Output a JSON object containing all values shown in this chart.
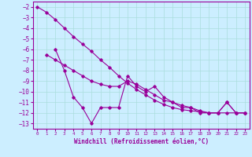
{
  "xlabel": "Windchill (Refroidissement éolien,°C)",
  "line_color": "#990099",
  "background_color": "#cceeff",
  "grid_color": "#aadddd",
  "xlim": [
    -0.5,
    23.5
  ],
  "ylim": [
    -13.5,
    -1.5
  ],
  "yticks": [
    -13,
    -12,
    -11,
    -10,
    -9,
    -8,
    -7,
    -6,
    -5,
    -4,
    -3,
    -2
  ],
  "xticks": [
    0,
    1,
    2,
    3,
    4,
    5,
    6,
    7,
    8,
    9,
    10,
    11,
    12,
    13,
    14,
    15,
    16,
    17,
    18,
    19,
    20,
    21,
    22,
    23
  ],
  "line1": {
    "x": [
      0,
      1,
      2,
      3,
      4,
      5,
      6,
      7,
      8,
      9,
      10,
      11,
      12,
      13,
      14,
      15,
      16,
      17,
      18,
      19,
      20,
      21,
      22,
      23
    ],
    "y": [
      -2.0,
      -2.5,
      -3.2,
      -4.0,
      -4.8,
      -5.5,
      -6.2,
      -7.0,
      -7.7,
      -8.5,
      -9.2,
      -9.8,
      -10.3,
      -10.8,
      -11.2,
      -11.5,
      -11.7,
      -11.8,
      -11.9,
      -12.0,
      -12.0,
      -12.0,
      -12.0,
      -12.0
    ]
  },
  "line2": {
    "x": [
      1,
      2,
      3,
      4,
      5,
      6,
      7,
      8,
      9,
      10,
      11,
      12,
      13,
      14,
      15,
      16,
      17,
      18,
      19,
      20,
      21,
      22,
      23
    ],
    "y": [
      -6.5,
      -7.0,
      -7.5,
      -8.0,
      -8.5,
      -9.0,
      -9.3,
      -9.5,
      -9.5,
      -9.0,
      -9.3,
      -9.8,
      -10.3,
      -10.8,
      -11.0,
      -11.3,
      -11.5,
      -11.8,
      -12.0,
      -12.0,
      -11.0,
      -12.0,
      -12.0
    ]
  },
  "line3": {
    "x": [
      2,
      3,
      4,
      5,
      6,
      7,
      8,
      9,
      10,
      11,
      12,
      13,
      14,
      15,
      16,
      17,
      18,
      19,
      20,
      21,
      22,
      23
    ],
    "y": [
      -6.0,
      -8.0,
      -10.5,
      -11.5,
      -13.0,
      -11.5,
      -11.5,
      -11.5,
      -8.5,
      -9.5,
      -10.0,
      -9.5,
      -10.5,
      -11.0,
      -11.5,
      -11.5,
      -12.0,
      -12.0,
      -12.0,
      -11.0,
      -12.0,
      -12.0
    ]
  },
  "xlabel_fontsize": 5.5,
  "ytick_fontsize": 5.5,
  "xtick_fontsize": 4.2
}
